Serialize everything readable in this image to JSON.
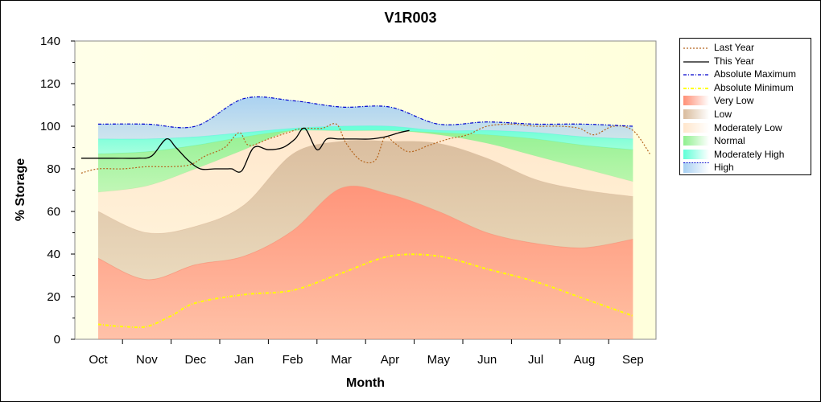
{
  "chart_data": {
    "type": "area",
    "title": "V1R003",
    "xlabel": "Month",
    "ylabel": "% Storage",
    "ylim": [
      0,
      140
    ],
    "yticks": [
      0,
      20,
      40,
      60,
      80,
      100,
      120,
      140
    ],
    "categories": [
      "Oct",
      "Nov",
      "Dec",
      "Jan",
      "Feb",
      "Mar",
      "Apr",
      "May",
      "Jun",
      "Jul",
      "Aug",
      "Sep"
    ],
    "grid": false,
    "legend_position": "right",
    "bands": [
      {
        "name": "Very Low",
        "color": "#ff8f75",
        "lower": [
          0,
          0,
          0,
          0,
          0,
          0,
          0,
          0,
          0,
          0,
          0,
          0
        ],
        "upper": [
          38,
          28,
          35,
          39,
          51,
          71,
          68,
          60,
          50,
          45,
          43,
          47
        ]
      },
      {
        "name": "Low",
        "color": "#d9bb9c",
        "lower": [
          38,
          28,
          35,
          39,
          51,
          71,
          68,
          60,
          50,
          45,
          43,
          47
        ],
        "upper": [
          60,
          50,
          53,
          63,
          87,
          93,
          93,
          92,
          85,
          75,
          70,
          67
        ]
      },
      {
        "name": "Moderately Low",
        "color": "#ffe6cc",
        "lower": [
          60,
          50,
          53,
          63,
          87,
          93,
          93,
          92,
          85,
          75,
          70,
          67
        ],
        "upper": [
          69,
          72,
          80,
          89,
          98,
          98,
          98,
          96,
          92,
          86,
          80,
          74
        ]
      },
      {
        "name": "Normal",
        "color": "#8ef08e",
        "lower": [
          69,
          72,
          80,
          89,
          98,
          98,
          98,
          96,
          92,
          86,
          80,
          74
        ],
        "upper": [
          87,
          88,
          91,
          95,
          98,
          98,
          98,
          97,
          96,
          94,
          91,
          89
        ]
      },
      {
        "name": "Moderately High",
        "color": "#5fffd7",
        "lower": [
          87,
          88,
          91,
          95,
          98,
          98,
          98,
          97,
          96,
          94,
          91,
          89
        ],
        "upper": [
          94,
          94,
          95,
          97,
          99,
          100,
          100,
          98,
          98,
          97,
          95,
          94
        ]
      },
      {
        "name": "High",
        "color": "#a6cff2",
        "lower": [
          94,
          94,
          95,
          97,
          99,
          100,
          100,
          98,
          98,
          97,
          95,
          94
        ],
        "upper": [
          101,
          101,
          100,
          113,
          112,
          109,
          109,
          101,
          102,
          101,
          101,
          100
        ]
      }
    ],
    "series": [
      {
        "name": "Last Year",
        "style": "dotted",
        "color": "#b5651d",
        "x": [
          -0.35,
          0,
          0.5,
          1,
          1.5,
          1.9,
          2.2,
          2.6,
          2.9,
          3.1,
          3.5,
          3.9,
          4.2,
          4.6,
          4.9,
          5.1,
          5.4,
          5.7,
          5.9,
          6.1,
          6.4,
          6.8,
          7.2,
          7.6,
          8,
          8.5,
          9,
          9.5,
          9.9,
          10.2,
          10.6,
          11,
          11.35
        ],
        "y": [
          78,
          80,
          80,
          81,
          81,
          82,
          86,
          90,
          97,
          91,
          94,
          97,
          99,
          99,
          101,
          92,
          84,
          84,
          95,
          92,
          88,
          91,
          94,
          96,
          100,
          101,
          100,
          100,
          99,
          96,
          100,
          98,
          87
        ]
      },
      {
        "name": "This Year",
        "style": "solid",
        "color": "#000000",
        "x": [
          -0.35,
          0.3,
          0.8,
          1.1,
          1.4,
          1.6,
          1.85,
          2.1,
          2.4,
          2.65,
          2.75,
          2.95,
          3.2,
          3.5,
          3.8,
          4.05,
          4.25,
          4.5,
          4.7,
          4.95,
          5.3,
          5.6,
          5.9,
          6.2,
          6.4
        ],
        "y": [
          85,
          85,
          85,
          86,
          94,
          90,
          84,
          80,
          80,
          80,
          80,
          79,
          90,
          89,
          90,
          94,
          99,
          89,
          94,
          94,
          94,
          94,
          95,
          97,
          98
        ]
      },
      {
        "name": "Absolute Maximum",
        "style": "dash-dot",
        "color": "#0000cc",
        "x": [
          0,
          1,
          2,
          3,
          4,
          5,
          6,
          7,
          8,
          9,
          10,
          11
        ],
        "y": [
          101,
          101,
          100,
          113,
          112,
          109,
          109,
          101,
          102,
          101,
          101,
          100
        ]
      },
      {
        "name": "Absolute Minimum",
        "style": "dash-dot",
        "color": "#ffff00",
        "x": [
          0,
          0.5,
          1,
          1.5,
          2,
          3,
          4,
          5,
          6,
          7,
          8,
          9,
          10,
          11
        ],
        "y": [
          7,
          6,
          6,
          11,
          17,
          21,
          23,
          31,
          39,
          39,
          33,
          27,
          19,
          11
        ]
      }
    ],
    "legend": [
      "Last Year",
      "This Year",
      "Absolute Maximum",
      "Absolute Minimum",
      "Very Low",
      "Low",
      "Moderately Low",
      "Normal",
      "Moderately High",
      "High"
    ]
  }
}
